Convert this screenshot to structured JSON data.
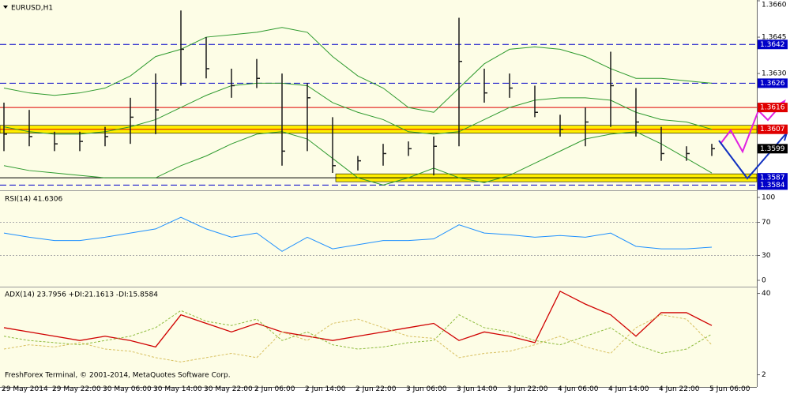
{
  "chart_data": [
    {
      "type": "ohlc",
      "title": "EURUSD,H1",
      "color": "#1a1a1a",
      "high": [
        1.3618,
        1.3615,
        1.3606,
        1.3606,
        1.3608,
        1.362,
        1.363,
        1.3656,
        1.3645,
        1.3632,
        1.3636,
        1.363,
        1.3626,
        1.3612,
        1.3596,
        1.3601,
        1.3602,
        1.3604,
        1.3653,
        1.3632,
        1.363,
        1.3625,
        1.3613,
        1.3616,
        1.3639,
        1.3624,
        1.3608,
        1.36,
        1.3601
      ],
      "low": [
        1.3598,
        1.36,
        1.3598,
        1.3598,
        1.36,
        1.3601,
        1.3605,
        1.3625,
        1.3628,
        1.362,
        1.3624,
        1.3592,
        1.3598,
        1.3589,
        1.359,
        1.3592,
        1.3596,
        1.3588,
        1.36,
        1.3618,
        1.362,
        1.3612,
        1.3604,
        1.36,
        1.3608,
        1.3604,
        1.3594,
        1.3594,
        1.3596
      ],
      "close": [
        1.3605,
        1.3604,
        1.3601,
        1.3602,
        1.3604,
        1.3612,
        1.3615,
        1.364,
        1.3632,
        1.3625,
        1.3628,
        1.3598,
        1.362,
        1.3592,
        1.3594,
        1.3597,
        1.3599,
        1.36,
        1.3635,
        1.3622,
        1.3624,
        1.3614,
        1.3607,
        1.361,
        1.3625,
        1.361,
        1.3597,
        1.3597,
        1.3599
      ],
      "bands": {
        "color": "#2e9a2e",
        "upper": [
          1.3624,
          1.3622,
          1.3621,
          1.3622,
          1.3624,
          1.3629,
          1.3637,
          1.364,
          1.3645,
          1.3646,
          1.3647,
          1.3649,
          1.3647,
          1.3637,
          1.3629,
          1.3624,
          1.3616,
          1.3614,
          1.3624,
          1.3634,
          1.364,
          1.3641,
          1.364,
          1.3637,
          1.3632,
          1.3628,
          1.3628,
          1.3627,
          1.3626
        ],
        "middle": [
          1.3608,
          1.3606,
          1.3605,
          1.3605,
          1.3606,
          1.3608,
          1.3611,
          1.3616,
          1.3621,
          1.3625,
          1.3626,
          1.3626,
          1.3625,
          1.3618,
          1.3614,
          1.3611,
          1.3606,
          1.3605,
          1.3606,
          1.3611,
          1.3616,
          1.3619,
          1.362,
          1.362,
          1.3619,
          1.3614,
          1.3611,
          1.361,
          1.3607
        ],
        "lower": [
          1.3592,
          1.359,
          1.3589,
          1.3588,
          1.3587,
          1.3587,
          1.3587,
          1.3592,
          1.3596,
          1.3601,
          1.3605,
          1.3606,
          1.3603,
          1.3595,
          1.3587,
          1.3584,
          1.3587,
          1.3591,
          1.3587,
          1.3585,
          1.3588,
          1.3593,
          1.3598,
          1.3603,
          1.3605,
          1.3606,
          1.3601,
          1.3595,
          1.3589
        ]
      },
      "levels": [
        {
          "value": 1.3642,
          "label": "1.3642",
          "color": "#0000c8",
          "style": "dashed"
        },
        {
          "value": 1.3626,
          "label": "1.3626",
          "color": "#0000c8",
          "style": "dashed"
        },
        {
          "value": 1.3616,
          "label": "1.3616",
          "color": "#e00000",
          "style": "solid"
        },
        {
          "value": 1.3607,
          "label": "1.3607",
          "color": "#e00000",
          "style": "highlight"
        },
        {
          "value": 1.3587,
          "label": "1.3587",
          "color": "#0000c8",
          "style": "highlight"
        },
        {
          "value": 1.3584,
          "label": "1.3584",
          "color": "#0000c8",
          "style": "dashed"
        },
        {
          "value": 1.3599,
          "label": "1.3599",
          "color": "#000000",
          "style": "none"
        }
      ],
      "ylim": [
        1.3582,
        1.366
      ],
      "yticks": [
        {
          "value": 1.366,
          "label": "1.3660"
        },
        {
          "value": 1.3645,
          "label": "1.3645"
        },
        {
          "value": 1.363,
          "label": "1.3630"
        }
      ]
    },
    {
      "type": "line",
      "title": "RSI(14) 41.6306",
      "color": "#1e90ff",
      "values": [
        57,
        52,
        48,
        48,
        52,
        57,
        62,
        76,
        62,
        52,
        57,
        35,
        52,
        38,
        43,
        48,
        48,
        50,
        67,
        57,
        55,
        52,
        54,
        52,
        57,
        41,
        38,
        38,
        40
      ],
      "ylim": [
        0,
        100
      ],
      "yticks": [
        100,
        70,
        30,
        0
      ],
      "grid_levels": [
        70,
        30
      ]
    },
    {
      "type": "line",
      "title": "ADX(14) 23.7956 +DI:21.1613 -DI:15.8584",
      "categories": [
        "29 May 2014",
        null,
        "29 May 22:00",
        null,
        "30 May 06:00",
        null,
        "30 May 14:00",
        null,
        "30 May 22:00",
        null,
        "2 Jun 06:00",
        null,
        "2 Jun 14:00",
        null,
        "2 Jun 22:00",
        null,
        "3 Jun 06:00",
        null,
        "3 Jun 14:00",
        null,
        "3 Jun 22:00",
        null,
        "4 Jun 06:00",
        null,
        "4 Jun 14:00",
        null,
        "4 Jun 22:00",
        null,
        "5 Jun 06:00"
      ],
      "series": [
        {
          "name": "ADX",
          "color": "#d00000",
          "dash": false,
          "values": [
            24,
            22,
            20,
            18,
            20,
            18,
            15,
            30,
            26,
            22,
            26,
            22,
            20,
            18,
            20,
            22,
            24,
            26,
            18,
            22,
            20,
            17,
            41,
            35,
            30,
            20,
            31,
            31,
            25
          ]
        },
        {
          "name": "+DI",
          "color": "#8fbc3f",
          "dash": true,
          "values": [
            20,
            18,
            17,
            16,
            18,
            20,
            24,
            32,
            27,
            25,
            28,
            18,
            22,
            16,
            14,
            15,
            17,
            18,
            30,
            24,
            22,
            18,
            16,
            20,
            24,
            16,
            12,
            14,
            21
          ]
        },
        {
          "name": "-DI",
          "color": "#d8c060",
          "dash": true,
          "values": [
            14,
            16,
            15,
            17,
            14,
            13,
            10,
            8,
            10,
            12,
            10,
            22,
            18,
            26,
            28,
            24,
            20,
            19,
            10,
            12,
            13,
            16,
            20,
            15,
            12,
            24,
            30,
            28,
            16
          ]
        }
      ],
      "ylim": [
        0,
        45
      ],
      "yticks": [
        40,
        2
      ]
    }
  ],
  "footer": "FreshForex Terminal, © 2001-2014, MetaQuotes Software Corp."
}
